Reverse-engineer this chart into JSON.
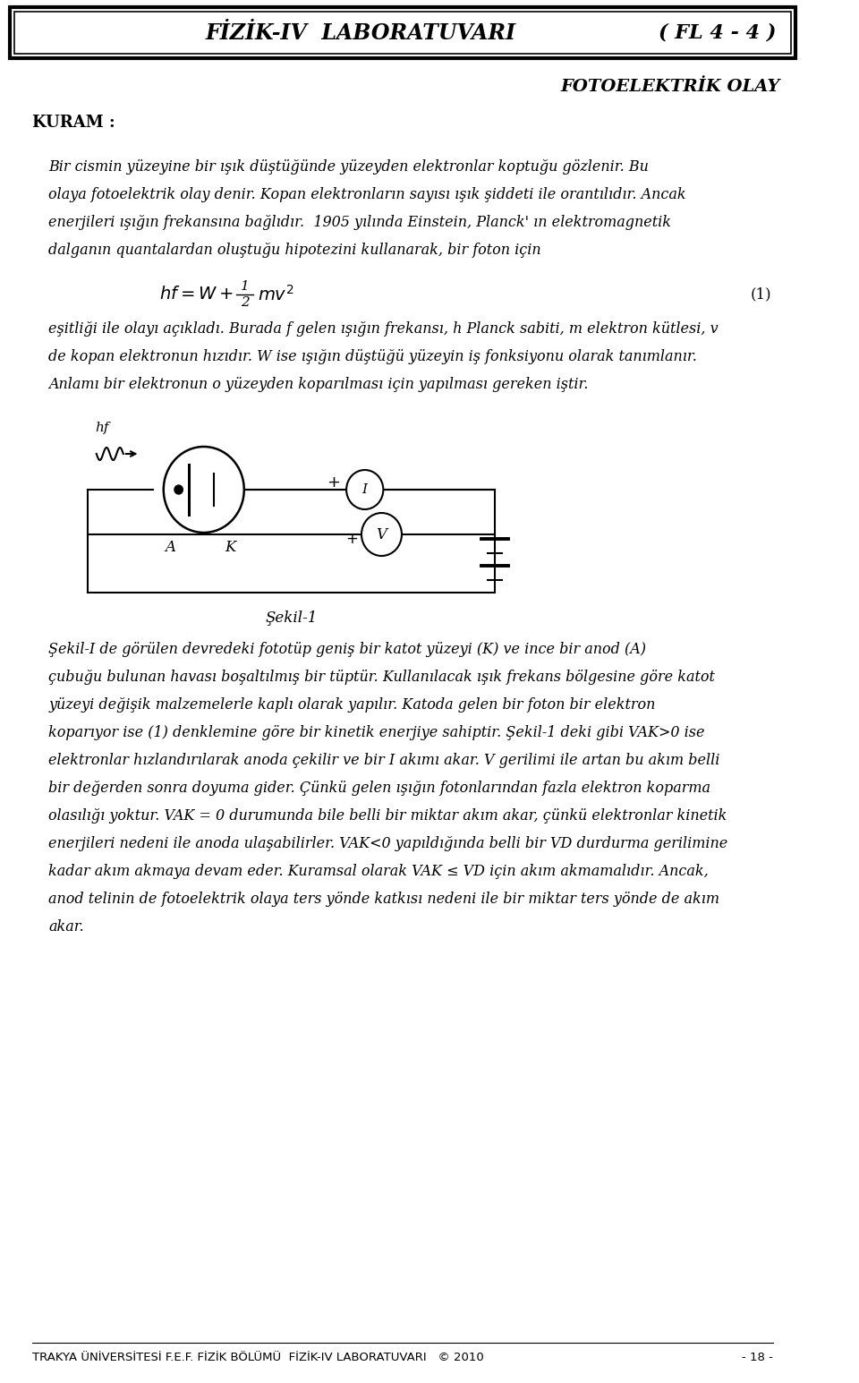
{
  "header_title": "FİZİK-IV  LABORATUVARI",
  "header_right": "( FL 4 - 4 )",
  "section_title": "FOTOELEKTRİK OLAY",
  "kuram": "KURAM :",
  "equation_label": "(1)",
  "circuit_caption": "Şekil-1",
  "footer": "TRAKYA ÜNİVERSİTESİ F.E.F. FİZİK BÖLÜMÜ  FİZİK-IV LABORATUVARI   © 2010",
  "footer_page": "- 18 -",
  "bg_color": "#ffffff",
  "text_color": "#000000",
  "para1_lines": [
    "Bir cismin yüzeyine bir ışık düştüğünde yüzeyden elektronlar koptuğu gözlenir. Bu",
    "olaya fotoelektrik olay denir. Kopan elektronların sayısı ışık şiddeti ile orantılıdır. Ancak",
    "enerjileri ışığın frekansına bağlıdır.  1905 yılında Einstein, Planck' ın elektromagnetik",
    "dalganın quantalardan oluştuğu hipotezini kullanarak, bir foton için"
  ],
  "para2_lines": [
    "eşitliği ile olayı açıkladı. Burada f gelen ışığın frekansı, h Planck sabiti, m elektron kütlesi, v",
    "de kopan elektronun hızıdır. W ise ışığın düştüğü yüzeyin iş fonksiyonu olarak tanımlanır.",
    "Anlamı bir elektronun o yüzeyden koparılması için yapılması gereken iştir."
  ],
  "para3_lines": [
    "Şekil-I de görülen devredeki fototüp geniş bir katot yüzeyi (K) ve ince bir anod (A)",
    "çubuğu bulunan havası boşaltılmış bir tüptür. Kullanılacak ışık frekans bölgesine göre katot",
    "yüzeyi değişik malzemelerle kaplı olarak yapılır. Katoda gelen bir foton bir elektron",
    "koparıyor ise (1) denklemine göre bir kinetik enerjiye sahiptir. Şekil-1 deki gibi VAK>0 ise",
    "elektronlar hızlandırılarak anoda çekilir ve bir I akımı akar. V gerilimi ile artan bu akım belli",
    "bir değerden sonra doyuma gider. Çünkü gelen ışığın fotonlarından fazla elektron koparma",
    "olasılığı yoktur. VAK = 0 durumunda bile belli bir miktar akım akar, çünkü elektronlar kinetik",
    "enerjileri nedeni ile anoda ulaşabilirler. VAK<0 yapıldığında belli bir VD durdurma gerilimine",
    "kadar akım akmaya devam eder. Kuramsal olarak VAK ≤ VD için akım akmamalıdır. Ancak,",
    "anod telinin de fotoelektrik olaya ters yönde katkısı nedeni ile bir miktar ters yönde de akım",
    "akar."
  ]
}
